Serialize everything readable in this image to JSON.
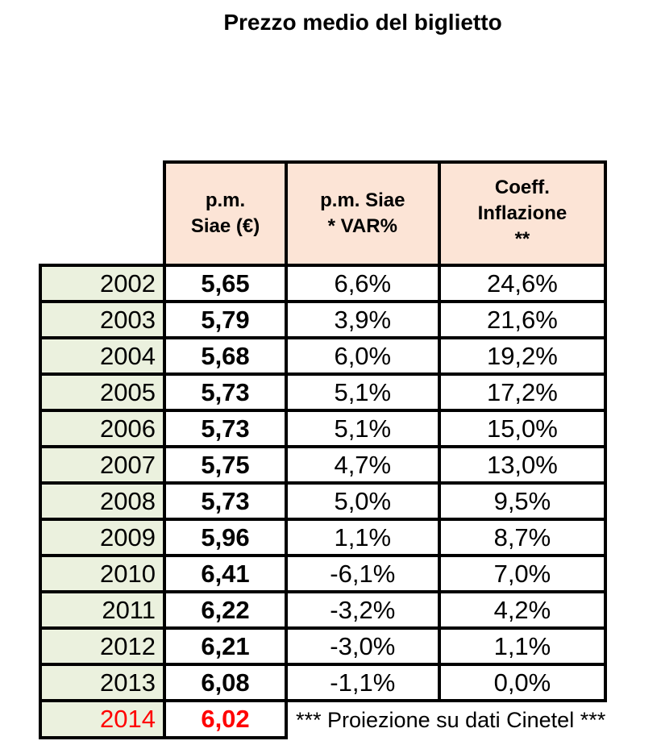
{
  "title": "Prezzo medio del biglietto",
  "chart_data": {
    "type": "table",
    "title": "Prezzo medio del biglietto",
    "columns": [
      "",
      "p.m. Siae (€)",
      "p.m. Siae * VAR%",
      "Coeff. Inflazione **"
    ],
    "rows": [
      {
        "year": "2002",
        "pm_siae": "5,65",
        "var_pct": "6,6%",
        "inflazione": "24,6%"
      },
      {
        "year": "2003",
        "pm_siae": "5,79",
        "var_pct": "3,9%",
        "inflazione": "21,6%"
      },
      {
        "year": "2004",
        "pm_siae": "5,68",
        "var_pct": "6,0%",
        "inflazione": "19,2%"
      },
      {
        "year": "2005",
        "pm_siae": "5,73",
        "var_pct": "5,1%",
        "inflazione": "17,2%"
      },
      {
        "year": "2006",
        "pm_siae": "5,73",
        "var_pct": "5,1%",
        "inflazione": "15,0%"
      },
      {
        "year": "2007",
        "pm_siae": "5,75",
        "var_pct": "4,7%",
        "inflazione": "13,0%"
      },
      {
        "year": "2008",
        "pm_siae": "5,73",
        "var_pct": "5,0%",
        "inflazione": "9,5%"
      },
      {
        "year": "2009",
        "pm_siae": "5,96",
        "var_pct": "1,1%",
        "inflazione": "8,7%"
      },
      {
        "year": "2010",
        "pm_siae": "6,41",
        "var_pct": "-6,1%",
        "inflazione": "7,0%"
      },
      {
        "year": "2011",
        "pm_siae": "6,22",
        "var_pct": "-3,2%",
        "inflazione": "4,2%"
      },
      {
        "year": "2012",
        "pm_siae": "6,21",
        "var_pct": "-3,0%",
        "inflazione": "1,1%"
      },
      {
        "year": "2013",
        "pm_siae": "6,08",
        "var_pct": "-1,1%",
        "inflazione": "0,0%"
      }
    ],
    "projection": {
      "year": "2014",
      "pm_siae": "6,02",
      "note": "*** Proiezione su dati Cinetel ***"
    }
  },
  "display": {
    "headers": {
      "pm_siae": "p.m.\nSiae (€)",
      "var_pct": "p.m. Siae\n* VAR%",
      "inflazione": "Coeff.\nInflazione\n**"
    }
  },
  "colors": {
    "header_bg": "#fce4d6",
    "year_col_bg": "#ebf1de",
    "projection_text": "#ff0000",
    "border": "#000000"
  }
}
